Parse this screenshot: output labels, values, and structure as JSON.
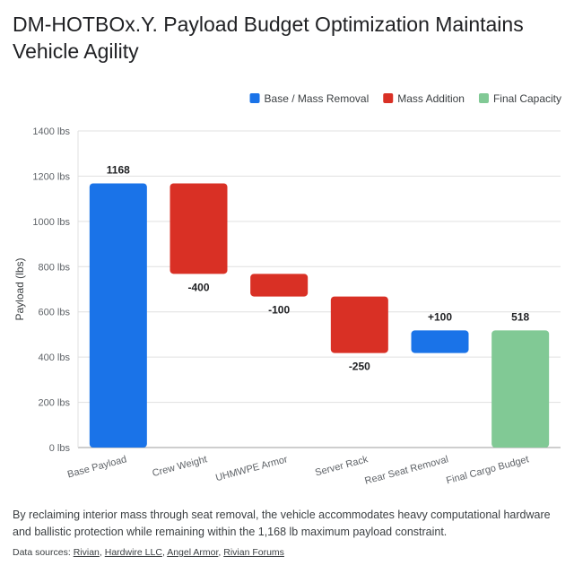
{
  "title": "DM-HOTBOx.Y. Payload Budget Optimization Maintains Vehicle Agility",
  "caption": "By reclaiming interior mass through seat removal, the vehicle accommodates heavy computational hardware and ballistic protection while remaining within the 1,168 lb maximum payload constraint.",
  "sources": {
    "prefix": "Data sources: ",
    "links": [
      "Rivian",
      "Hardwire LLC",
      "Angel Armor",
      "Rivian Forums"
    ]
  },
  "colors": {
    "base": "#1a73e8",
    "addition": "#d93025",
    "final": "#81c995",
    "grid": "#e0e0e0",
    "axis": "#9e9e9e"
  },
  "chart_data": {
    "type": "bar",
    "subtype": "waterfall",
    "ylabel": "Payload (lbs)",
    "ylim": [
      0,
      1400
    ],
    "yticks": [
      0,
      200,
      400,
      600,
      800,
      1000,
      1200,
      1400
    ],
    "ytick_labels": [
      "0 lbs",
      "200 lbs",
      "400 lbs",
      "600 lbs",
      "800 lbs",
      "1000 lbs",
      "1200 lbs",
      "1400 lbs"
    ],
    "legend": [
      {
        "name": "Base / Mass Removal",
        "color_key": "base"
      },
      {
        "name": "Mass Addition",
        "color_key": "addition"
      },
      {
        "name": "Final Capacity",
        "color_key": "final"
      }
    ],
    "legend_position": "top-right",
    "grid": "horizontal",
    "categories": [
      "Base Payload",
      "Crew Weight",
      "UHMWPE Armor",
      "Server Rack",
      "Rear Seat Removal",
      "Final Cargo Budget"
    ],
    "bars": [
      {
        "start": 0,
        "end": 1168,
        "label": "1168",
        "kind": "base"
      },
      {
        "start": 1168,
        "end": 768,
        "label": "-400",
        "kind": "addition"
      },
      {
        "start": 768,
        "end": 668,
        "label": "-100",
        "kind": "addition"
      },
      {
        "start": 668,
        "end": 418,
        "label": "-250",
        "kind": "addition"
      },
      {
        "start": 418,
        "end": 518,
        "label": "+100",
        "kind": "base"
      },
      {
        "start": 0,
        "end": 518,
        "label": "518",
        "kind": "final"
      }
    ]
  }
}
